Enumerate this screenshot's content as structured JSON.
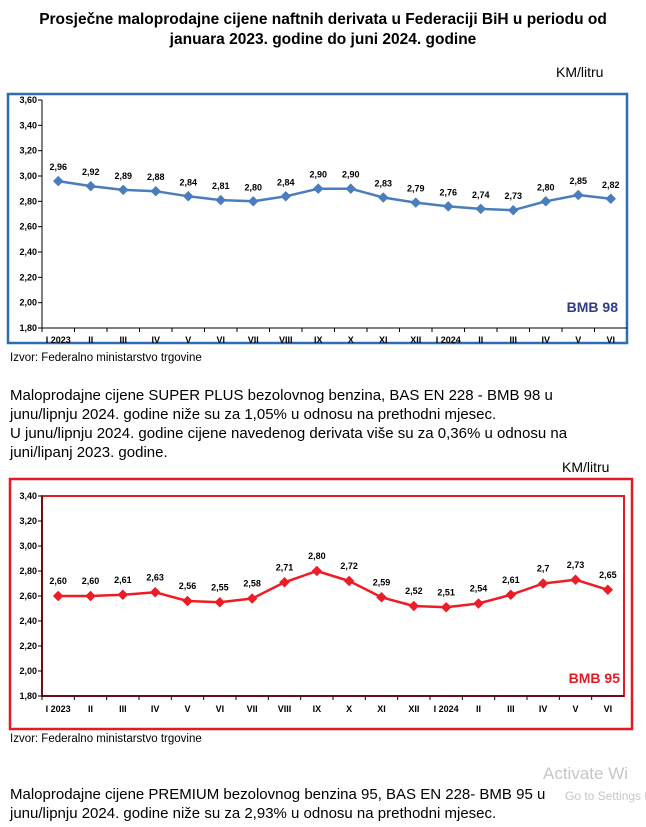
{
  "title_line1": "Prosječne maloprodajne cijene naftnih derivata u Federaciji BiH u periodu od",
  "title_line2": "januara 2023. godine do juni 2024. godine",
  "chart_data": [
    {
      "type": "line",
      "name": "BMB 98",
      "unit_label": "KM/litru",
      "color": "#4a7dbb",
      "frame_color": "#2e6db4",
      "badge_color": "#2e3d87",
      "categories": [
        "I 2023",
        "II",
        "III",
        "IV",
        "V",
        "VI",
        "VII",
        "VIII",
        "IX",
        "X",
        "XI",
        "XII",
        "I 2024",
        "II",
        "III",
        "IV",
        "V",
        "VI"
      ],
      "values": [
        2.96,
        2.92,
        2.89,
        2.88,
        2.84,
        2.81,
        2.8,
        2.84,
        2.9,
        2.9,
        2.83,
        2.79,
        2.76,
        2.74,
        2.73,
        2.8,
        2.85,
        2.82
      ],
      "labels": [
        "2,96",
        "2,92",
        "2,89",
        "2,88",
        "2,84",
        "2,81",
        "2,80",
        "2,84",
        "2,90",
        "2,90",
        "2,83",
        "2,79",
        "2,76",
        "2,74",
        "2,73",
        "2,80",
        "2,85",
        "2,82"
      ],
      "y_ticks": [
        "3,60",
        "3,40",
        "3,20",
        "3,00",
        "2,80",
        "2,60",
        "2,40",
        "2,20",
        "2,00",
        "1,80"
      ],
      "ylim": [
        1.8,
        3.6
      ],
      "source": "Izvor: Federalno ministarstvo trgovine"
    },
    {
      "type": "line",
      "name": "BMB 95",
      "unit_label": "KM/litru",
      "color": "#ee1c25",
      "frame_color": "#e31b23",
      "badge_color": "#e31b23",
      "categories": [
        "I 2023",
        "II",
        "III",
        "IV",
        "V",
        "VI",
        "VII",
        "VIII",
        "IX",
        "X",
        "XI",
        "XII",
        "I 2024",
        "II",
        "III",
        "IV",
        "V",
        "VI"
      ],
      "values": [
        2.6,
        2.6,
        2.61,
        2.63,
        2.56,
        2.55,
        2.58,
        2.71,
        2.8,
        2.72,
        2.59,
        2.52,
        2.51,
        2.54,
        2.61,
        2.7,
        2.73,
        2.65
      ],
      "labels": [
        "2,60",
        "2,60",
        "2,61",
        "2,63",
        "2,56",
        "2,55",
        "2,58",
        "2,71",
        "2,80",
        "2,72",
        "2,59",
        "2,52",
        "2,51",
        "2,54",
        "2,61",
        "2,7",
        "2,73",
        "2,65"
      ],
      "y_ticks": [
        "3,40",
        "3,20",
        "3,00",
        "2,80",
        "2,60",
        "2,40",
        "2,20",
        "2,00",
        "1,80"
      ],
      "ylim": [
        1.8,
        3.4
      ],
      "source": "Izvor: Federalno ministarstvo trgovine"
    }
  ],
  "text1_line1": "Maloprodajne cijene SUPER PLUS bezolovnog benzina, BAS EN 228 - BMB 98 u",
  "text1_line2": "junu/lipnju 2024. godine niže su za 1,05% u odnosu na prethodni mjesec.",
  "text1_line3": "U junu/lipnju 2024. godine cijene navedenog derivata više su za 0,36% u odnosu na",
  "text1_line4": "juni/lipanj  2023. godine.",
  "text2_line1": "Maloprodajne cijene PREMIUM bezolovnog benzina 95, BAS EN 228- BMB 95 u",
  "text2_line2": "junu/lipnju 2024. godine niže su za 2,93% u odnosu na prethodni mjesec.",
  "watermark_title": "Activate Wi",
  "watermark_sub": "Go to Settings t"
}
